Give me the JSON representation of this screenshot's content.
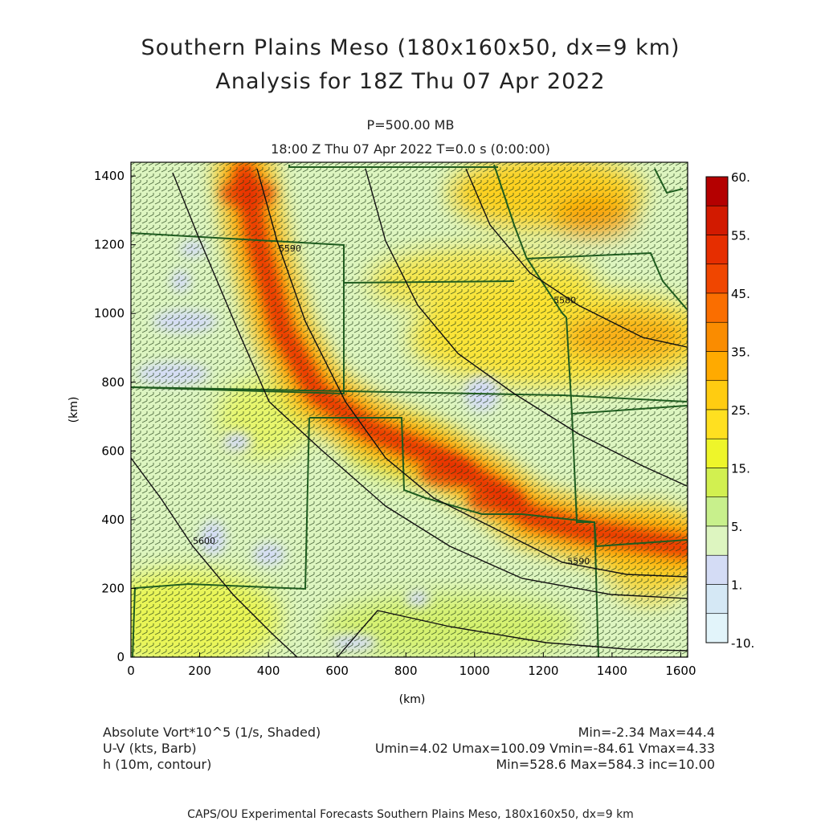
{
  "title": "Southern Plains Meso (180x160x50, dx=9 km)",
  "subtitle": "Analysis for 18Z Thu 07 Apr 2022",
  "level": "P=500.00 MB",
  "timeline": "18:00 Z Thu 07 Apr 2022    T=0.0 s (0:00:00)",
  "footer": {
    "field1_label": "Absolute Vort*10^5 (1/s, Shaded)",
    "field1_stats": "Min=-2.34 Max=44.4",
    "field2_label": "U-V (kts, Barb)",
    "field2_stats": "Umin=4.02 Umax=100.09 Vmin=-84.61 Vmax=4.33",
    "field3_label": "h (10m, contour)",
    "field3_stats": "Min=528.6 Max=584.3 inc=10.00",
    "credit": "CAPS/OU Experimental Forecasts  Southern Plains Meso, 180x160x50, dx=9 km"
  },
  "chart_data": {
    "type": "heatmap",
    "xlabel": "(km)",
    "ylabel": "(km)",
    "xlim": [
      0,
      1620
    ],
    "ylim": [
      0,
      1440
    ],
    "xticks": [
      0,
      200,
      400,
      600,
      800,
      1000,
      1200,
      1400,
      1600
    ],
    "yticks": [
      0,
      200,
      400,
      600,
      800,
      1000,
      1200,
      1400
    ],
    "colorbar": {
      "labels": [
        "60.",
        "55.",
        "45.",
        "35.",
        "25.",
        "15.",
        "5.",
        "1.",
        "-10."
      ],
      "colors": [
        "#b40000",
        "#d21a00",
        "#e62e00",
        "#f04600",
        "#fa6e00",
        "#fa8c00",
        "#ffaa00",
        "#ffcc11",
        "#ffe020",
        "#eef52a",
        "#d2f050",
        "#c8f08c",
        "#ddf5c0",
        "#d4dcf5",
        "#d5e8f5",
        "#e2f4fa"
      ]
    },
    "contour_labels": [
      {
        "text": "5590",
        "x": 430,
        "y": 1180
      },
      {
        "text": "5580",
        "x": 1230,
        "y": 1030
      },
      {
        "text": "5600",
        "x": 180,
        "y": 330
      },
      {
        "text": "5590",
        "x": 1270,
        "y": 270
      }
    ],
    "vorticity_band": [
      [
        330,
        1410
      ],
      [
        370,
        1200
      ],
      [
        440,
        950
      ],
      [
        540,
        770
      ],
      [
        700,
        660
      ],
      [
        900,
        580
      ],
      [
        1040,
        500
      ],
      [
        1160,
        410
      ],
      [
        1310,
        370
      ],
      [
        1620,
        320
      ]
    ],
    "band_peak_value": 44.4
  }
}
